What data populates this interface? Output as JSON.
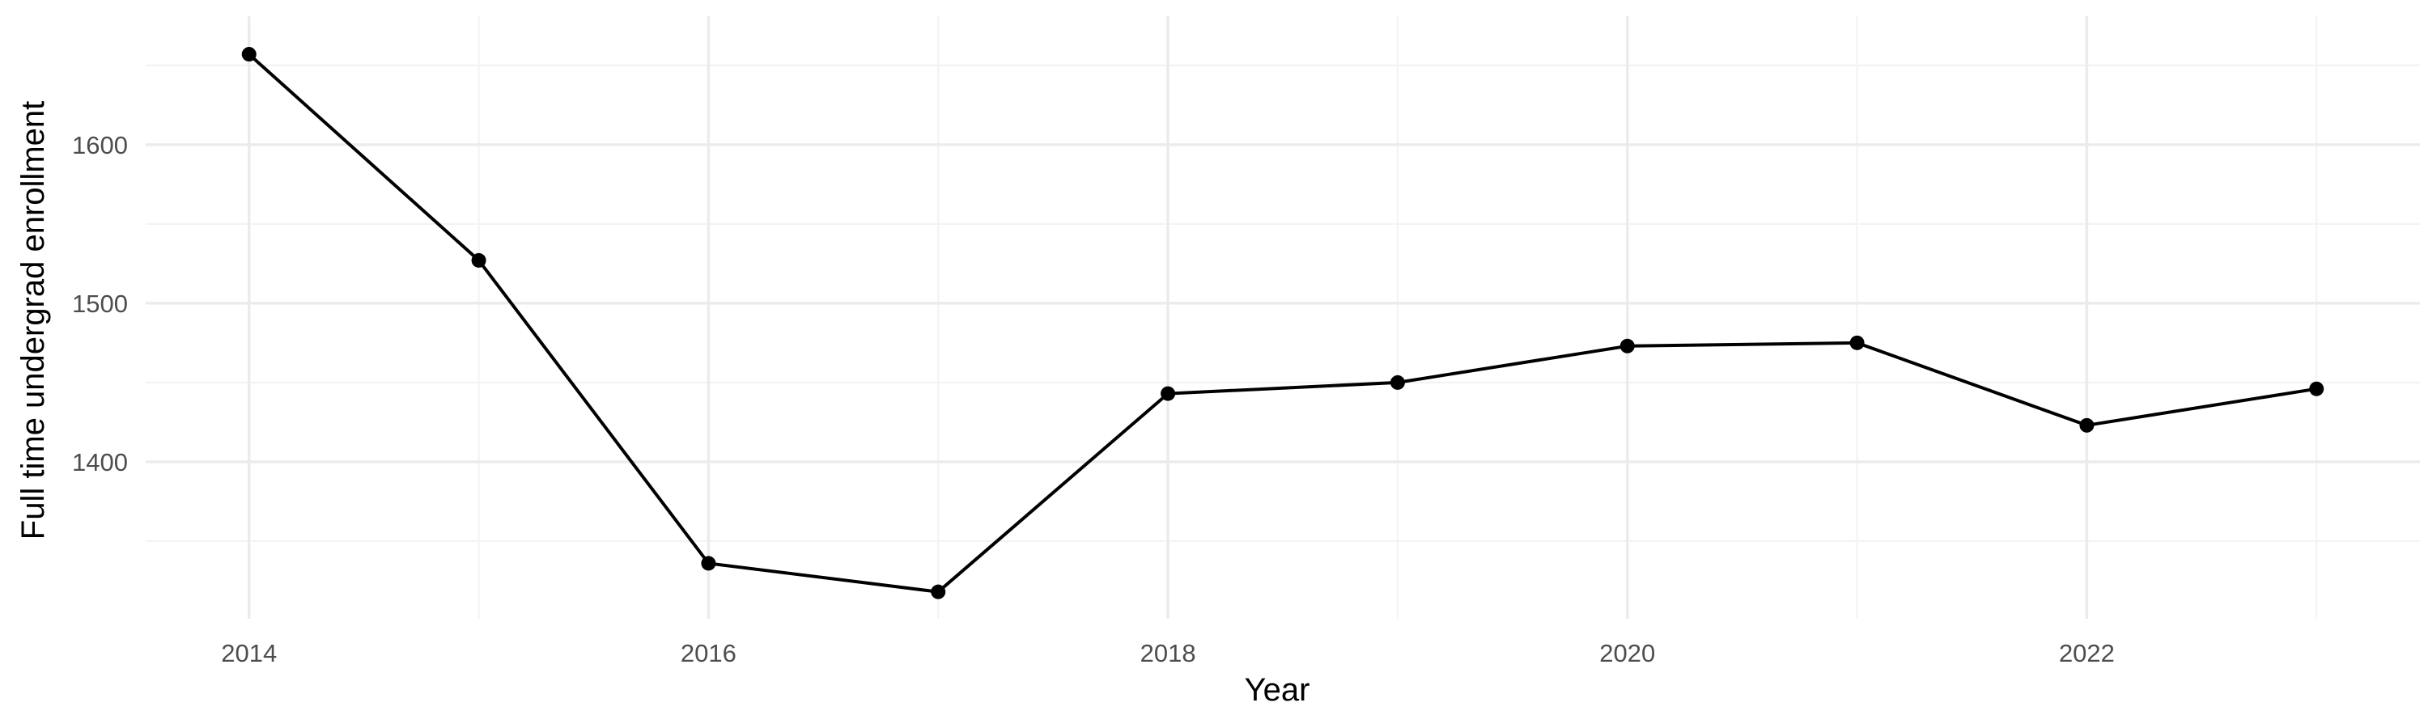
{
  "chart_data": {
    "type": "line",
    "title": "",
    "xlabel": "Year",
    "ylabel": "Full time undergrad enrollment",
    "x": [
      2014,
      2015,
      2016,
      2017,
      2018,
      2019,
      2020,
      2021,
      2022,
      2023
    ],
    "series": [
      {
        "values": [
          1657,
          1527,
          1336,
          1318,
          1443,
          1450,
          1473,
          1475,
          1423,
          1446
        ]
      }
    ],
    "xlim": [
      2013.55,
      2023.45
    ],
    "ylim": [
      1301,
      1681
    ],
    "x_ticks": [
      2014,
      2016,
      2018,
      2020,
      2022
    ],
    "x_tick_labels": [
      "2014",
      "2016",
      "2018",
      "2020",
      "2022"
    ],
    "y_ticks": [
      1400,
      1500,
      1600
    ],
    "y_tick_labels": [
      "1400",
      "1500",
      "1600"
    ],
    "y_minor_ticks": [
      1350,
      1450,
      1550,
      1650
    ],
    "grid": true,
    "legend": "none",
    "colors": {
      "line": "#000000",
      "points": "#000000",
      "background": "#ffffff"
    }
  }
}
